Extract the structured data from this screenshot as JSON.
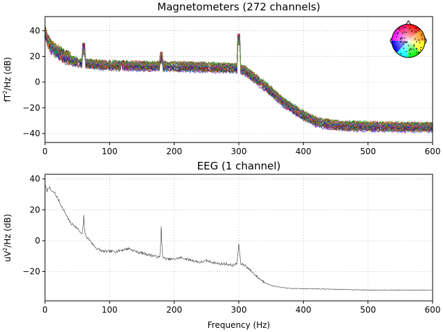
{
  "chart_data": [
    {
      "type": "line",
      "title": "Magnetometers (272 channels)",
      "ylabel_main": "fT",
      "ylabel_sup": "2",
      "ylabel_rest": "/Hz (dB)",
      "xlim": [
        0,
        600
      ],
      "ylim": [
        -47,
        51
      ],
      "xticks": [
        0,
        100,
        200,
        300,
        400,
        500,
        600
      ],
      "xtick_labels": [
        "0",
        "100",
        "200",
        "300",
        "400",
        "500",
        "600"
      ],
      "yticks": [
        -40,
        -20,
        0,
        20,
        40
      ],
      "ytick_labels": [
        "−40",
        "−20",
        "0",
        "20",
        "40"
      ],
      "grid": true,
      "channel_count": 272,
      "mean_curve": {
        "x": [
          0,
          5,
          10,
          20,
          30,
          40,
          50,
          60,
          70,
          100,
          150,
          200,
          250,
          290,
          300,
          310,
          340,
          370,
          400,
          420,
          440,
          460,
          500,
          550,
          600
        ],
        "y": [
          38,
          30,
          26,
          22,
          19,
          17,
          15.5,
          14.5,
          14,
          13,
          12.5,
          12,
          11.5,
          11,
          10.5,
          9,
          -3,
          -16,
          -26,
          -31,
          -33,
          -34,
          -34.5,
          -35,
          -35
        ]
      },
      "line_noise_peaks": [
        {
          "x": 60,
          "y": 31
        },
        {
          "x": 120,
          "y": 17
        },
        {
          "x": 180,
          "y": 24
        },
        {
          "x": 300,
          "y": 38
        }
      ],
      "inset": "sensor-topomap",
      "inset_position": "top-right"
    },
    {
      "type": "line",
      "title": "EEG (1 channel)",
      "ylabel_main": "uV",
      "ylabel_sup": "2",
      "ylabel_rest": "/Hz (dB)",
      "xlabel": "Frequency (Hz)",
      "xlim": [
        0,
        600
      ],
      "ylim": [
        -39,
        43
      ],
      "xticks": [
        0,
        100,
        200,
        300,
        400,
        500,
        600
      ],
      "xtick_labels": [
        "0",
        "100",
        "200",
        "300",
        "400",
        "500",
        "600"
      ],
      "yticks": [
        -20,
        0,
        20,
        40
      ],
      "ytick_labels": [
        "−20",
        "0",
        "20",
        "40"
      ],
      "grid": true,
      "line_color": "#333333",
      "series": {
        "x": [
          0,
          3,
          6,
          10,
          15,
          20,
          25,
          30,
          35,
          40,
          45,
          50,
          55,
          58,
          60,
          62,
          65,
          70,
          75,
          80,
          90,
          100,
          110,
          120,
          130,
          140,
          150,
          160,
          170,
          178,
          180,
          182,
          190,
          200,
          210,
          220,
          230,
          240,
          250,
          260,
          270,
          280,
          290,
          297,
          300,
          303,
          310,
          320,
          330,
          340,
          350,
          360,
          380,
          400,
          450,
          500,
          550,
          600
        ],
        "y": [
          36,
          32,
          35,
          32,
          31,
          27,
          23,
          19,
          15,
          11,
          10,
          8,
          5,
          4,
          16,
          4,
          2,
          0,
          -3,
          -5,
          -7,
          -7,
          -7,
          -6,
          -5,
          -7,
          -8,
          -9,
          -10,
          -11,
          9,
          -11,
          -12,
          -12,
          -11,
          -12,
          -13,
          -14,
          -13,
          -14,
          -15,
          -15,
          -16,
          -15,
          -2,
          -15,
          -16,
          -20,
          -24,
          -27,
          -29,
          -30,
          -31,
          -31,
          -31.5,
          -32,
          -32,
          -32
        ]
      }
    }
  ],
  "colors": {
    "mag_channel_palette": [
      "#000000",
      "#ff0000",
      "#00aa00",
      "#0000ff",
      "#aa6600",
      "#aa00aa",
      "#008888",
      "#7744ff",
      "#ff8800",
      "#33aa33"
    ],
    "eeg_line": "#333333",
    "grid": "#b0b0b0"
  }
}
